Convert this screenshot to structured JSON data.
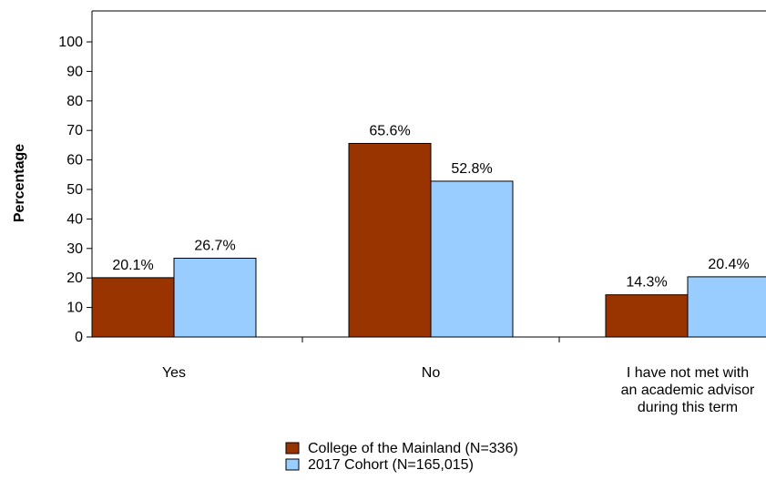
{
  "chart_data": {
    "type": "bar",
    "title": "",
    "xlabel": "",
    "ylabel": "Percentage",
    "ylim": [
      0,
      100
    ],
    "yticks": [
      0,
      10,
      20,
      30,
      40,
      50,
      60,
      70,
      80,
      90,
      100
    ],
    "grid": false,
    "legend_placement": "bottom-center",
    "categories": [
      [
        "Yes"
      ],
      [
        "No"
      ],
      [
        "I have not met with",
        "an academic advisor",
        "during this term"
      ]
    ],
    "series": [
      {
        "name": "College of the Mainland (N=336)",
        "color": "#993300",
        "values": [
          20.1,
          65.6,
          14.3
        ],
        "labels": [
          "20.1%",
          "65.6%",
          "14.3%"
        ]
      },
      {
        "name": "2017 Cohort (N=165,015)",
        "color": "#99ccff",
        "values": [
          26.7,
          52.8,
          20.4
        ],
        "labels": [
          "26.7%",
          "52.8%",
          "20.4%"
        ]
      }
    ]
  }
}
